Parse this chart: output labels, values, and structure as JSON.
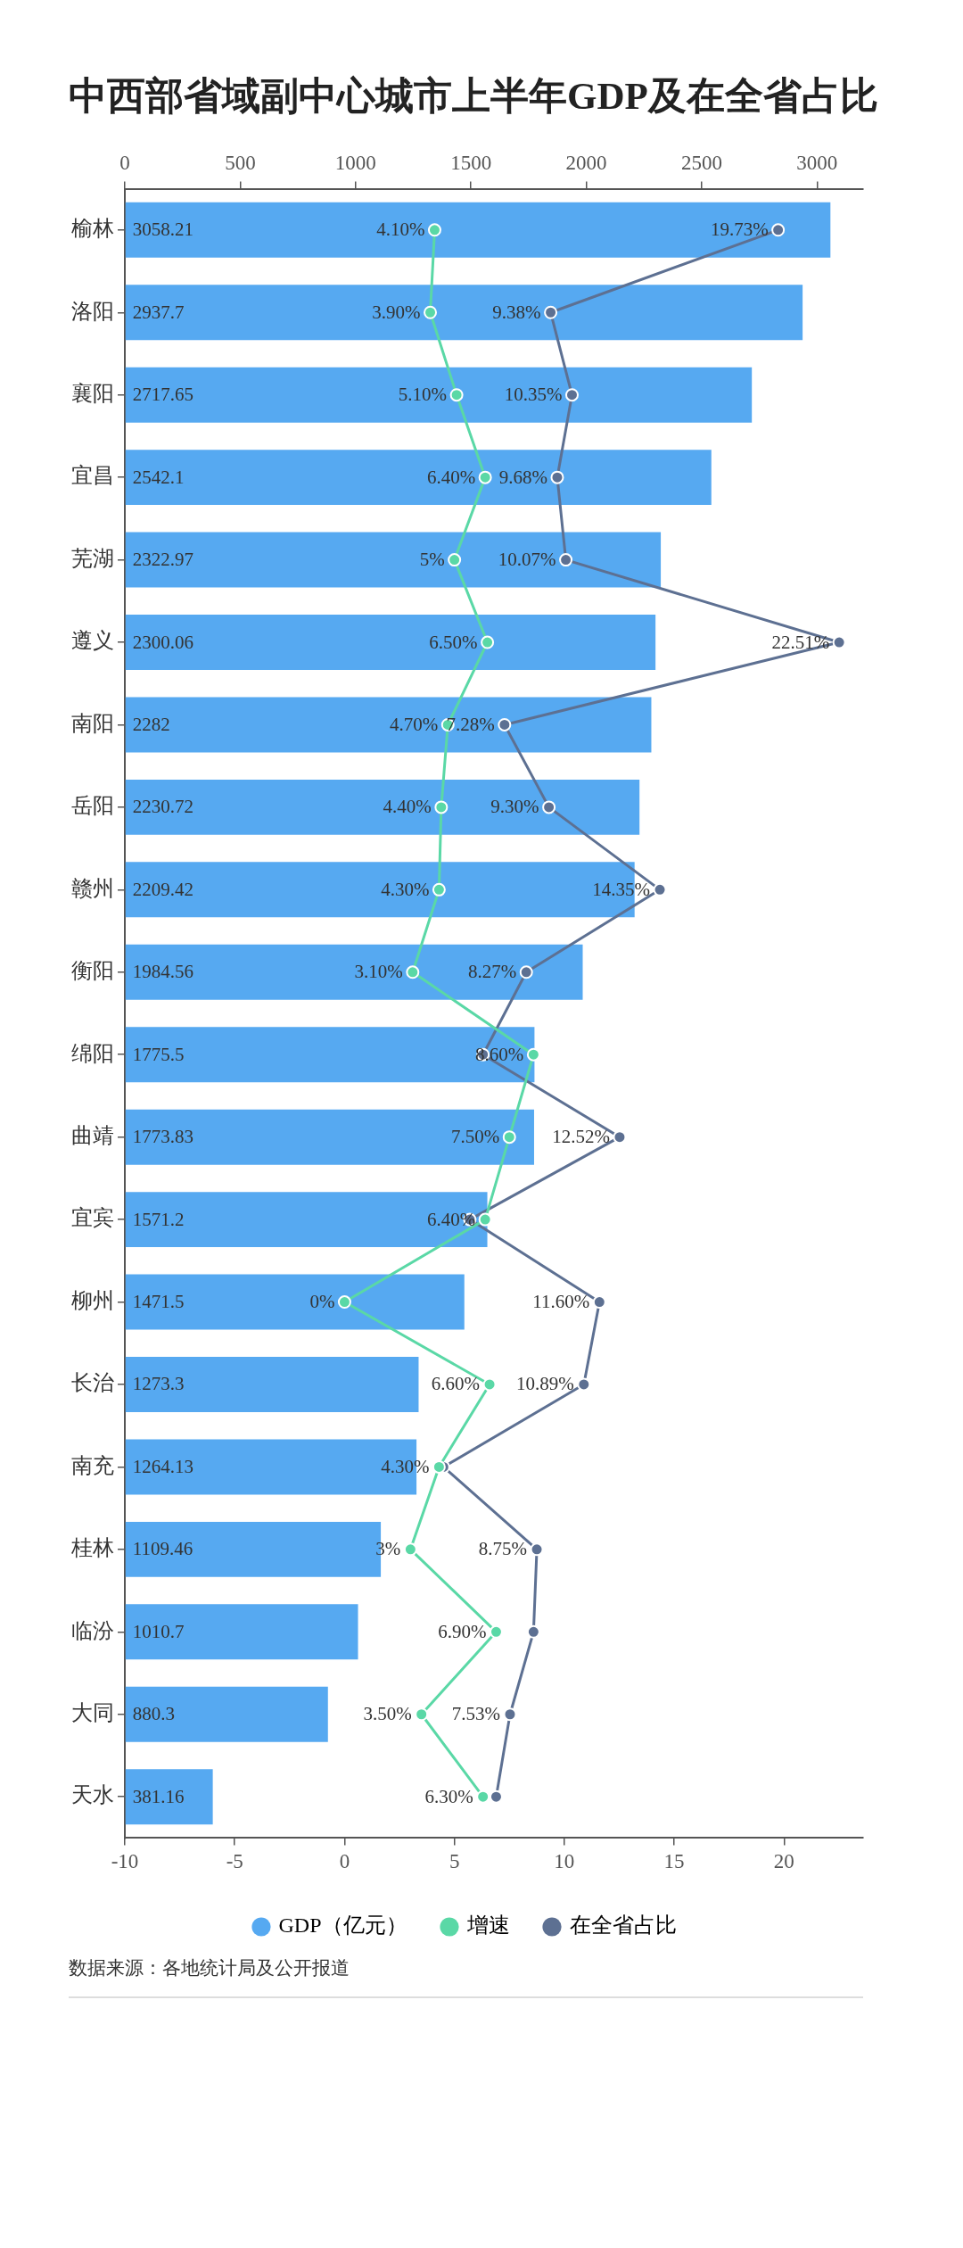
{
  "chart_data": {
    "type": "bar",
    "orientation": "horizontal",
    "title": "中西部省域副中心城市上半年GDP及在全省占比",
    "categories": [
      "榆林",
      "洛阳",
      "襄阳",
      "宜昌",
      "芜湖",
      "遵义",
      "南阳",
      "岳阳",
      "赣州",
      "衡阳",
      "绵阳",
      "曲靖",
      "宜宾",
      "柳州",
      "长治",
      "南充",
      "桂林",
      "临汾",
      "大同",
      "天水"
    ],
    "series": [
      {
        "name": "GDP（亿元）",
        "axis": "x2",
        "color": "#56a9f1",
        "values": [
          3058.21,
          2937.7,
          2717.65,
          2542.1,
          2322.97,
          2300.06,
          2282,
          2230.72,
          2209.42,
          1984.56,
          1775.5,
          1773.83,
          1571.2,
          1471.5,
          1273.3,
          1264.13,
          1109.46,
          1010.7,
          880.3,
          381.16
        ],
        "value_labels": [
          "3058.21",
          "2937.7",
          "2717.65",
          "2542.1",
          "2322.97",
          "2300.06",
          "2282",
          "2230.72",
          "2209.42",
          "1984.56",
          "1775.5",
          "1773.83",
          "1571.2",
          "1471.5",
          "1273.3",
          "1264.13",
          "1109.46",
          "1010.7",
          "880.3",
          "381.16"
        ]
      },
      {
        "name": "增速",
        "type": "line",
        "color": "#5ad8a6",
        "values": [
          4.1,
          3.9,
          5.1,
          6.4,
          5,
          6.5,
          4.7,
          4.4,
          4.3,
          3.1,
          8.6,
          7.5,
          6.4,
          0,
          6.6,
          4.3,
          3,
          6.9,
          3.5,
          6.3
        ],
        "value_labels": [
          "4.10%",
          "3.90%",
          "5.10%",
          "6.40%",
          "5%",
          "6.50%",
          "4.70%",
          "4.40%",
          "4.30%",
          "3.10%",
          "8.60%",
          "7.50%",
          "6.40%",
          "0%",
          "6.60%",
          "4.30%",
          "3%",
          "6.90%",
          "3.50%",
          "6.30%"
        ]
      },
      {
        "name": "在全省占比",
        "type": "line",
        "color": "#5d7092",
        "values": [
          19.73,
          9.38,
          10.35,
          9.68,
          10.07,
          22.51,
          7.28,
          9.3,
          14.35,
          8.27,
          6.3,
          12.52,
          5.7,
          11.6,
          10.89,
          4.5,
          8.75,
          8.6,
          7.53,
          6.9
        ],
        "value_labels": [
          "19.73%",
          "9.38%",
          "10.35%",
          "9.68%",
          "10.07%",
          "22.51%",
          "7.28%",
          "9.30%",
          "14.35%",
          "8.27%",
          null,
          "12.52%",
          null,
          "11.60%",
          "10.89%",
          null,
          "8.75%",
          null,
          "7.53%",
          null
        ]
      }
    ],
    "xlim": [
      -10,
      23.6
    ],
    "xticks": [
      -10,
      -5,
      0,
      5,
      10,
      15,
      20
    ],
    "x2lim": [
      0,
      3200
    ],
    "x2ticks": [
      0,
      500,
      1000,
      1500,
      2000,
      2500,
      3000
    ],
    "legend": "bottom",
    "marker": "circle",
    "annotations": [
      "数据来源：各地统计局及公开报道"
    ]
  }
}
